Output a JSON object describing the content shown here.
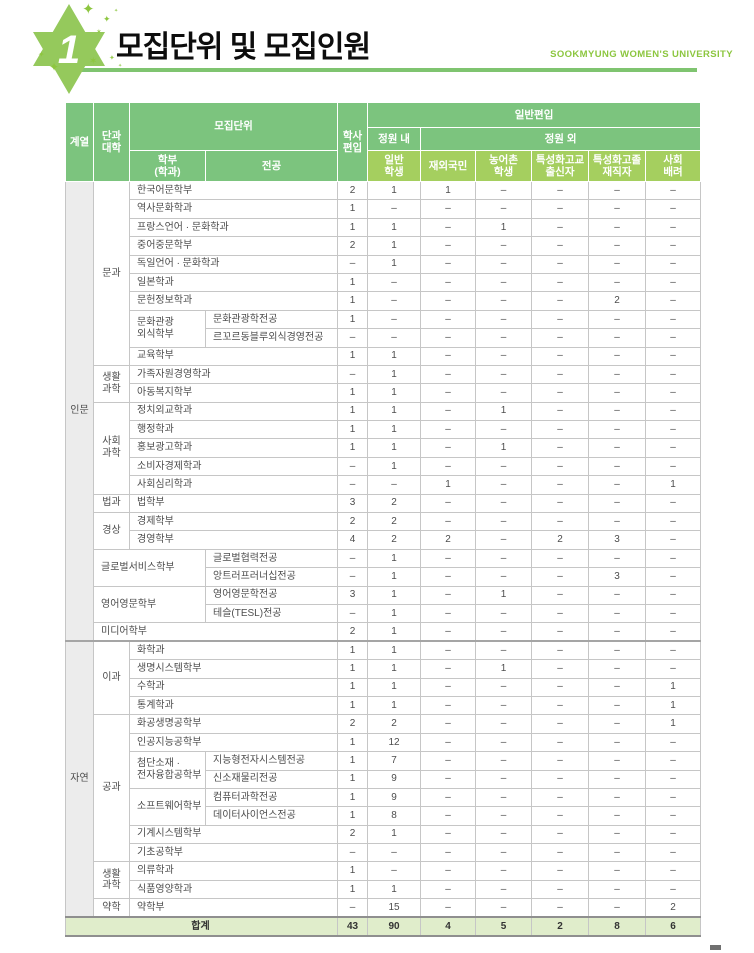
{
  "page": {
    "badge_number": "1",
    "title": "모집단위 및 모집인원",
    "university": "SOOKMYUNG WOMEN'S UNIVERSITY"
  },
  "icons": {
    "sparkle4": "✦",
    "sparkle6": "✶"
  },
  "colors": {
    "header_green": "#7cc47e",
    "subheader_green": "#a5cf5f",
    "accent_green": "#8dc63f",
    "total_row_bg": "#e0edcb",
    "category_bg": "#ececec"
  },
  "table": {
    "header_rows": [
      [
        {
          "t": "계열",
          "rs": 3,
          "n": "category-header"
        },
        {
          "t": "단과\n대학",
          "rs": 3,
          "n": "college-header"
        },
        {
          "t": "모집단위",
          "cs": 2,
          "rs": 2,
          "n": "unit-header"
        },
        {
          "t": "학사\n편입",
          "rs": 3,
          "n": "bachelor-transfer-header"
        },
        {
          "t": "일반편입",
          "cs": 6,
          "n": "general-transfer-header"
        }
      ],
      [
        {
          "t": "정원 내",
          "n": "within-quota-header"
        },
        {
          "t": "정원 외",
          "cs": 5,
          "n": "outside-quota-header"
        }
      ],
      [
        {
          "t": "학부\n(학과)",
          "n": "dept-header"
        },
        {
          "t": "전공",
          "n": "major-header"
        },
        {
          "t": "일반\n학생",
          "c": "h2",
          "n": "general-student-header"
        },
        {
          "t": "재외국민",
          "c": "h2",
          "n": "overseas-korean-header"
        },
        {
          "t": "농어촌\n학생",
          "c": "h2",
          "n": "rural-student-header"
        },
        {
          "t": "특성화고교\n출신자",
          "c": "h2",
          "n": "vocational-hs-graduate-header"
        },
        {
          "t": "특성화고졸\n재직자",
          "c": "h2",
          "n": "vocational-grad-worker-header"
        },
        {
          "t": "사회\n배려",
          "c": "h2",
          "n": "social-consideration-header"
        }
      ]
    ],
    "body_rows": [
      {
        "cells": [
          {
            "t": "인문",
            "rs": 25,
            "c": "cat",
            "n": "category-cell"
          },
          {
            "t": "문과",
            "rs": 10,
            "c": "col",
            "n": "college-cell"
          },
          {
            "t": "한국어문학부",
            "cs": 2,
            "c": "dept",
            "n": "dept-cell"
          }
        ],
        "v": [
          "2",
          "1",
          "1",
          "–",
          "–",
          "–",
          "–"
        ]
      },
      {
        "cells": [
          {
            "t": "역사문화학과",
            "cs": 2,
            "c": "dept",
            "n": "dept-cell"
          }
        ],
        "v": [
          "1",
          "–",
          "–",
          "–",
          "–",
          "–",
          "–"
        ]
      },
      {
        "cells": [
          {
            "t": "프랑스언어 · 문화학과",
            "cs": 2,
            "c": "dept",
            "n": "dept-cell"
          }
        ],
        "v": [
          "1",
          "1",
          "–",
          "1",
          "–",
          "–",
          "–"
        ]
      },
      {
        "cells": [
          {
            "t": "중어중문학부",
            "cs": 2,
            "c": "dept",
            "n": "dept-cell"
          }
        ],
        "v": [
          "2",
          "1",
          "–",
          "–",
          "–",
          "–",
          "–"
        ]
      },
      {
        "cells": [
          {
            "t": "독일언어 · 문화학과",
            "cs": 2,
            "c": "dept",
            "n": "dept-cell"
          }
        ],
        "v": [
          "–",
          "1",
          "–",
          "–",
          "–",
          "–",
          "–"
        ]
      },
      {
        "cells": [
          {
            "t": "일본학과",
            "cs": 2,
            "c": "dept",
            "n": "dept-cell"
          }
        ],
        "v": [
          "1",
          "–",
          "–",
          "–",
          "–",
          "–",
          "–"
        ]
      },
      {
        "cells": [
          {
            "t": "문헌정보학과",
            "cs": 2,
            "c": "dept",
            "n": "dept-cell"
          }
        ],
        "v": [
          "1",
          "–",
          "–",
          "–",
          "–",
          "2",
          "–"
        ]
      },
      {
        "cells": [
          {
            "t": "문화관광\n외식학부",
            "rs": 2,
            "c": "dept",
            "n": "dept-cell"
          },
          {
            "t": "문화관광학전공",
            "c": "major",
            "n": "major-cell"
          }
        ],
        "v": [
          "1",
          "–",
          "–",
          "–",
          "–",
          "–",
          "–"
        ]
      },
      {
        "cells": [
          {
            "t": "르꼬르동블루외식경영전공",
            "c": "major",
            "n": "major-cell"
          }
        ],
        "v": [
          "–",
          "–",
          "–",
          "–",
          "–",
          "–",
          "–"
        ]
      },
      {
        "cells": [
          {
            "t": "교육학부",
            "cs": 2,
            "c": "dept",
            "n": "dept-cell"
          }
        ],
        "v": [
          "1",
          "1",
          "–",
          "–",
          "–",
          "–",
          "–"
        ]
      },
      {
        "cells": [
          {
            "t": "생활\n과학",
            "rs": 2,
            "c": "col",
            "n": "college-cell"
          },
          {
            "t": "가족자원경영학과",
            "cs": 2,
            "c": "dept",
            "n": "dept-cell"
          }
        ],
        "v": [
          "–",
          "1",
          "–",
          "–",
          "–",
          "–",
          "–"
        ]
      },
      {
        "cells": [
          {
            "t": "아동복지학부",
            "cs": 2,
            "c": "dept",
            "n": "dept-cell"
          }
        ],
        "v": [
          "1",
          "1",
          "–",
          "–",
          "–",
          "–",
          "–"
        ]
      },
      {
        "cells": [
          {
            "t": "사회\n과학",
            "rs": 5,
            "c": "col",
            "n": "college-cell"
          },
          {
            "t": "정치외교학과",
            "cs": 2,
            "c": "dept",
            "n": "dept-cell"
          }
        ],
        "v": [
          "1",
          "1",
          "–",
          "1",
          "–",
          "–",
          "–"
        ]
      },
      {
        "cells": [
          {
            "t": "행정학과",
            "cs": 2,
            "c": "dept",
            "n": "dept-cell"
          }
        ],
        "v": [
          "1",
          "1",
          "–",
          "–",
          "–",
          "–",
          "–"
        ]
      },
      {
        "cells": [
          {
            "t": "홍보광고학과",
            "cs": 2,
            "c": "dept",
            "n": "dept-cell"
          }
        ],
        "v": [
          "1",
          "1",
          "–",
          "1",
          "–",
          "–",
          "–"
        ]
      },
      {
        "cells": [
          {
            "t": "소비자경제학과",
            "cs": 2,
            "c": "dept",
            "n": "dept-cell"
          }
        ],
        "v": [
          "–",
          "1",
          "–",
          "–",
          "–",
          "–",
          "–"
        ]
      },
      {
        "cells": [
          {
            "t": "사회심리학과",
            "cs": 2,
            "c": "dept",
            "n": "dept-cell"
          }
        ],
        "v": [
          "–",
          "–",
          "1",
          "–",
          "–",
          "–",
          "1"
        ]
      },
      {
        "cells": [
          {
            "t": "법과",
            "c": "col",
            "n": "college-cell"
          },
          {
            "t": "법학부",
            "cs": 2,
            "c": "dept",
            "n": "dept-cell"
          }
        ],
        "v": [
          "3",
          "2",
          "–",
          "–",
          "–",
          "–",
          "–"
        ]
      },
      {
        "cells": [
          {
            "t": "경상",
            "rs": 2,
            "c": "col",
            "n": "college-cell"
          },
          {
            "t": "경제학부",
            "cs": 2,
            "c": "dept",
            "n": "dept-cell"
          }
        ],
        "v": [
          "2",
          "2",
          "–",
          "–",
          "–",
          "–",
          "–"
        ]
      },
      {
        "cells": [
          {
            "t": "경영학부",
            "cs": 2,
            "c": "dept",
            "n": "dept-cell"
          }
        ],
        "v": [
          "4",
          "2",
          "2",
          "–",
          "2",
          "3",
          "–"
        ]
      },
      {
        "cells": [
          {
            "t": "글로벌서비스학부",
            "rs": 2,
            "cs": 2,
            "c": "dept",
            "n": "dept-cell"
          },
          {
            "t": "글로벌협력전공",
            "c": "major",
            "n": "major-cell"
          }
        ],
        "v": [
          "–",
          "1",
          "–",
          "–",
          "–",
          "–",
          "–"
        ]
      },
      {
        "cells": [
          {
            "t": "앙트러프러너십전공",
            "c": "major",
            "n": "major-cell"
          }
        ],
        "v": [
          "–",
          "1",
          "–",
          "–",
          "–",
          "3",
          "–"
        ]
      },
      {
        "cells": [
          {
            "t": "영어영문학부",
            "rs": 2,
            "cs": 2,
            "c": "dept",
            "n": "dept-cell"
          },
          {
            "t": "영어영문학전공",
            "c": "major",
            "n": "major-cell"
          }
        ],
        "v": [
          "3",
          "1",
          "–",
          "1",
          "–",
          "–",
          "–"
        ]
      },
      {
        "cells": [
          {
            "t": "테슬(TESL)전공",
            "c": "major",
            "n": "major-cell"
          }
        ],
        "v": [
          "–",
          "1",
          "–",
          "–",
          "–",
          "–",
          "–"
        ]
      },
      {
        "cells": [
          {
            "t": "미디어학부",
            "cs": 3,
            "c": "dept",
            "n": "dept-cell"
          }
        ],
        "v": [
          "2",
          "1",
          "–",
          "–",
          "–",
          "–",
          "–"
        ]
      },
      {
        "sec": true,
        "cells": [
          {
            "t": "자연",
            "rs": 15,
            "c": "cat",
            "n": "category-cell"
          },
          {
            "t": "이과",
            "rs": 4,
            "c": "col",
            "n": "college-cell"
          },
          {
            "t": "화학과",
            "cs": 2,
            "c": "dept",
            "n": "dept-cell"
          }
        ],
        "v": [
          "1",
          "1",
          "–",
          "–",
          "–",
          "–",
          "–"
        ]
      },
      {
        "cells": [
          {
            "t": "생명시스템학부",
            "cs": 2,
            "c": "dept",
            "n": "dept-cell"
          }
        ],
        "v": [
          "1",
          "1",
          "–",
          "1",
          "–",
          "–",
          "–"
        ]
      },
      {
        "cells": [
          {
            "t": "수학과",
            "cs": 2,
            "c": "dept",
            "n": "dept-cell"
          }
        ],
        "v": [
          "1",
          "1",
          "–",
          "–",
          "–",
          "–",
          "1"
        ]
      },
      {
        "cells": [
          {
            "t": "통계학과",
            "cs": 2,
            "c": "dept",
            "n": "dept-cell"
          }
        ],
        "v": [
          "1",
          "1",
          "–",
          "–",
          "–",
          "–",
          "1"
        ]
      },
      {
        "cells": [
          {
            "t": "공과",
            "rs": 8,
            "c": "col",
            "n": "college-cell"
          },
          {
            "t": "화공생명공학부",
            "cs": 2,
            "c": "dept",
            "n": "dept-cell"
          }
        ],
        "v": [
          "2",
          "2",
          "–",
          "–",
          "–",
          "–",
          "1"
        ]
      },
      {
        "cells": [
          {
            "t": "인공지능공학부",
            "cs": 2,
            "c": "dept",
            "n": "dept-cell"
          }
        ],
        "v": [
          "1",
          "12",
          "–",
          "–",
          "–",
          "–",
          "–"
        ]
      },
      {
        "cells": [
          {
            "t": "첨단소재 ·\n전자융합공학부",
            "rs": 2,
            "c": "dept",
            "n": "dept-cell"
          },
          {
            "t": "지능형전자시스템전공",
            "c": "major",
            "n": "major-cell"
          }
        ],
        "v": [
          "1",
          "7",
          "–",
          "–",
          "–",
          "–",
          "–"
        ]
      },
      {
        "cells": [
          {
            "t": "신소재물리전공",
            "c": "major",
            "n": "major-cell"
          }
        ],
        "v": [
          "1",
          "9",
          "–",
          "–",
          "–",
          "–",
          "–"
        ]
      },
      {
        "cells": [
          {
            "t": "소프트웨어학부",
            "rs": 2,
            "c": "dept",
            "n": "dept-cell"
          },
          {
            "t": "컴퓨터과학전공",
            "c": "major",
            "n": "major-cell"
          }
        ],
        "v": [
          "1",
          "9",
          "–",
          "–",
          "–",
          "–",
          "–"
        ]
      },
      {
        "cells": [
          {
            "t": "데이터사이언스전공",
            "c": "major",
            "n": "major-cell"
          }
        ],
        "v": [
          "1",
          "8",
          "–",
          "–",
          "–",
          "–",
          "–"
        ]
      },
      {
        "cells": [
          {
            "t": "기계시스템학부",
            "cs": 2,
            "c": "dept",
            "n": "dept-cell"
          }
        ],
        "v": [
          "2",
          "1",
          "–",
          "–",
          "–",
          "–",
          "–"
        ]
      },
      {
        "cells": [
          {
            "t": "기초공학부",
            "cs": 2,
            "c": "dept",
            "n": "dept-cell"
          }
        ],
        "v": [
          "–",
          "–",
          "–",
          "–",
          "–",
          "–",
          "–"
        ]
      },
      {
        "cells": [
          {
            "t": "생활\n과학",
            "rs": 2,
            "c": "col",
            "n": "college-cell"
          },
          {
            "t": "의류학과",
            "cs": 2,
            "c": "dept",
            "n": "dept-cell"
          }
        ],
        "v": [
          "1",
          "–",
          "–",
          "–",
          "–",
          "–",
          "–"
        ]
      },
      {
        "cells": [
          {
            "t": "식품영양학과",
            "cs": 2,
            "c": "dept",
            "n": "dept-cell"
          }
        ],
        "v": [
          "1",
          "1",
          "–",
          "–",
          "–",
          "–",
          "–"
        ]
      },
      {
        "cells": [
          {
            "t": "약학",
            "c": "col",
            "n": "college-cell"
          },
          {
            "t": "약학부",
            "cs": 2,
            "c": "dept",
            "n": "dept-cell"
          }
        ],
        "v": [
          "–",
          "15",
          "–",
          "–",
          "–",
          "–",
          "2"
        ]
      }
    ],
    "total": {
      "label": "합계",
      "v": [
        "43",
        "90",
        "4",
        "5",
        "2",
        "8",
        "6"
      ]
    }
  }
}
